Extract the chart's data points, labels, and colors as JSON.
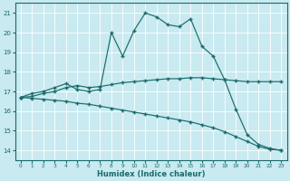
{
  "xlabel": "Humidex (Indice chaleur)",
  "xlim": [
    -0.5,
    23.5
  ],
  "ylim": [
    13.5,
    21.5
  ],
  "xticks": [
    0,
    1,
    2,
    3,
    4,
    5,
    6,
    7,
    8,
    9,
    10,
    11,
    12,
    13,
    14,
    15,
    16,
    17,
    18,
    19,
    20,
    21,
    22,
    23
  ],
  "yticks": [
    14,
    15,
    16,
    17,
    18,
    19,
    20,
    21
  ],
  "bg_color": "#c8eaf0",
  "line_color": "#1a6b6b",
  "grid_color": "#ffffff",
  "line1_x": [
    0,
    1,
    2,
    3,
    4,
    5,
    6,
    7,
    8,
    9,
    10,
    11,
    12,
    13,
    14,
    15,
    16,
    17,
    18,
    19,
    20,
    21,
    22,
    23
  ],
  "line1_y": [
    16.7,
    16.9,
    17.0,
    17.2,
    17.4,
    17.1,
    17.0,
    17.1,
    20.0,
    18.8,
    20.1,
    21.0,
    20.8,
    20.4,
    20.3,
    20.7,
    19.3,
    18.8,
    17.6,
    16.1,
    14.8,
    14.3,
    14.1,
    14.0
  ],
  "line2_x": [
    0,
    1,
    2,
    3,
    4,
    5,
    6,
    7,
    8,
    9,
    10,
    11,
    12,
    13,
    14,
    15,
    16,
    17,
    18,
    19,
    20,
    21,
    22,
    23
  ],
  "line2_y": [
    16.7,
    16.75,
    16.9,
    17.0,
    17.2,
    17.3,
    17.2,
    17.25,
    17.35,
    17.45,
    17.5,
    17.55,
    17.6,
    17.65,
    17.65,
    17.7,
    17.7,
    17.65,
    17.6,
    17.55,
    17.5,
    17.5,
    17.5,
    17.5
  ],
  "line3_x": [
    0,
    1,
    2,
    3,
    4,
    5,
    6,
    7,
    8,
    9,
    10,
    11,
    12,
    13,
    14,
    15,
    16,
    17,
    18,
    19,
    20,
    21,
    22,
    23
  ],
  "line3_y": [
    16.7,
    16.65,
    16.6,
    16.55,
    16.5,
    16.4,
    16.35,
    16.25,
    16.15,
    16.05,
    15.95,
    15.85,
    15.75,
    15.65,
    15.55,
    15.45,
    15.3,
    15.15,
    14.95,
    14.7,
    14.45,
    14.2,
    14.05,
    14.0
  ]
}
